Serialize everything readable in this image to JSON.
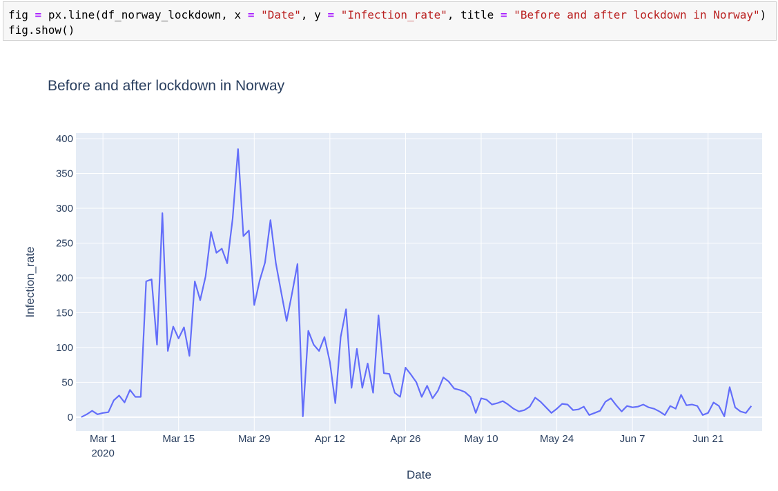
{
  "code": {
    "line1": {
      "var": "fig",
      "eq": "=",
      "call": "px.line(df_norway_lockdown, x",
      "eq2": "=",
      "x_str": "\"Date\"",
      "comma_y": ", y",
      "eq3": "=",
      "y_str": "\"Infection_rate\"",
      "comma_title": ", title",
      "eq4": "=",
      "title_str": "\"Before and after lockdown in Norway\"",
      "close": ")"
    },
    "line2": "fig.show()"
  },
  "colors": {
    "line": "#636efa",
    "plot_bg": "#e5ecf6",
    "grid": "#ffffff",
    "text": "#2a3f5f"
  },
  "chart_data": {
    "type": "line",
    "title": "Before and after lockdown in Norway",
    "xlabel": "Date",
    "ylabel": "Infection_rate",
    "x_start": "2020-02-26",
    "xlim": [
      "2020-02-25",
      "2020-07-01"
    ],
    "ylim": [
      -20,
      408
    ],
    "y_ticks": [
      0,
      50,
      100,
      150,
      200,
      250,
      300,
      350,
      400
    ],
    "x_ticks": [
      {
        "date": "2020-03-01",
        "label": "Mar 1",
        "sublabel": "2020"
      },
      {
        "date": "2020-03-15",
        "label": "Mar 15"
      },
      {
        "date": "2020-03-29",
        "label": "Mar 29"
      },
      {
        "date": "2020-04-12",
        "label": "Apr 12"
      },
      {
        "date": "2020-04-26",
        "label": "Apr 26"
      },
      {
        "date": "2020-05-10",
        "label": "May 10"
      },
      {
        "date": "2020-05-24",
        "label": "May 24"
      },
      {
        "date": "2020-06-07",
        "label": "Jun 7"
      },
      {
        "date": "2020-06-21",
        "label": "Jun 21"
      }
    ],
    "grid": true,
    "series": [
      {
        "values": [
          0,
          4,
          9,
          4,
          6,
          7,
          24,
          31,
          21,
          39,
          29,
          29,
          195,
          198,
          104,
          293,
          95,
          130,
          113,
          129,
          88,
          195,
          168,
          202,
          266,
          236,
          242,
          221,
          285,
          385,
          260,
          268,
          161,
          196,
          222,
          283,
          221,
          179,
          138,
          178,
          220,
          1,
          124,
          104,
          95,
          115,
          79,
          20,
          115,
          155,
          42,
          98,
          42,
          77,
          35,
          146,
          63,
          62,
          35,
          29,
          71,
          61,
          50,
          29,
          45,
          27,
          38,
          57,
          51,
          41,
          39,
          36,
          29,
          6,
          27,
          25,
          18,
          20,
          23,
          18,
          12,
          8,
          10,
          15,
          28,
          22,
          14,
          6,
          12,
          19,
          18,
          10,
          11,
          15,
          3,
          6,
          9,
          22,
          27,
          17,
          8,
          16,
          14,
          15,
          18,
          14,
          12,
          8,
          3,
          16,
          12,
          32,
          17,
          18,
          16,
          3,
          6,
          21,
          16,
          1,
          43,
          14,
          8,
          6,
          16
        ]
      }
    ]
  }
}
